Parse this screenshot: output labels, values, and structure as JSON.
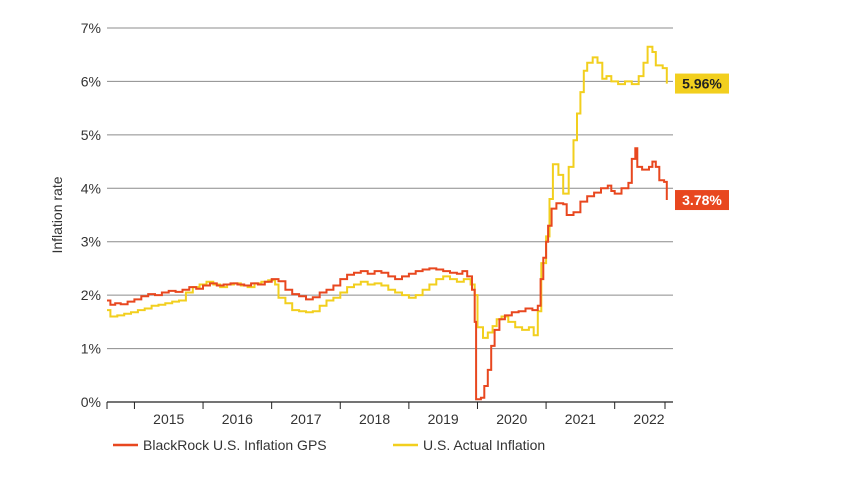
{
  "chart_data": {
    "type": "line",
    "title": "",
    "xlabel": "",
    "ylabel": "Inflation rate",
    "xlim": [
      2014.6,
      2022.85
    ],
    "ylim": [
      0,
      7
    ],
    "yticks": [
      {
        "v": 0,
        "label": "0%"
      },
      {
        "v": 1,
        "label": "1%"
      },
      {
        "v": 2,
        "label": "2%"
      },
      {
        "v": 3,
        "label": "3%"
      },
      {
        "v": 4,
        "label": "4%"
      },
      {
        "v": 5,
        "label": "5%"
      },
      {
        "v": 6,
        "label": "6%"
      },
      {
        "v": 7,
        "label": "7%"
      }
    ],
    "xtick_marks": [
      2015.0,
      2016.0,
      2017.0,
      2018.0,
      2019.0,
      2020.0,
      2021.0,
      2022.0
    ],
    "xcategories": [
      {
        "v": 2015.5,
        "label": "2015"
      },
      {
        "v": 2016.5,
        "label": "2016"
      },
      {
        "v": 2017.5,
        "label": "2017"
      },
      {
        "v": 2018.5,
        "label": "2018"
      },
      {
        "v": 2019.5,
        "label": "2019"
      },
      {
        "v": 2020.5,
        "label": "2020"
      },
      {
        "v": 2021.5,
        "label": "2021"
      },
      {
        "v": 2022.5,
        "label": "2022"
      }
    ],
    "legend": "bottom",
    "grid": "horizontal",
    "series": [
      {
        "name": "BlackRock U.S. Inflation GPS",
        "color": "#e8471f",
        "end_label": "3.78%",
        "points": [
          [
            2014.6,
            1.9
          ],
          [
            2014.65,
            1.82
          ],
          [
            2014.72,
            1.85
          ],
          [
            2014.8,
            1.83
          ],
          [
            2014.9,
            1.88
          ],
          [
            2015.0,
            1.92
          ],
          [
            2015.1,
            1.98
          ],
          [
            2015.2,
            2.02
          ],
          [
            2015.3,
            2.0
          ],
          [
            2015.4,
            2.05
          ],
          [
            2015.5,
            2.08
          ],
          [
            2015.6,
            2.06
          ],
          [
            2015.7,
            2.1
          ],
          [
            2015.8,
            2.15
          ],
          [
            2015.9,
            2.12
          ],
          [
            2016.0,
            2.18
          ],
          [
            2016.1,
            2.22
          ],
          [
            2016.2,
            2.18
          ],
          [
            2016.3,
            2.2
          ],
          [
            2016.4,
            2.22
          ],
          [
            2016.5,
            2.2
          ],
          [
            2016.6,
            2.18
          ],
          [
            2016.7,
            2.22
          ],
          [
            2016.8,
            2.2
          ],
          [
            2016.9,
            2.25
          ],
          [
            2017.0,
            2.3
          ],
          [
            2017.1,
            2.26
          ],
          [
            2017.2,
            2.1
          ],
          [
            2017.3,
            2.02
          ],
          [
            2017.4,
            1.98
          ],
          [
            2017.5,
            1.92
          ],
          [
            2017.6,
            1.96
          ],
          [
            2017.7,
            2.05
          ],
          [
            2017.8,
            2.1
          ],
          [
            2017.9,
            2.18
          ],
          [
            2018.0,
            2.3
          ],
          [
            2018.1,
            2.38
          ],
          [
            2018.2,
            2.42
          ],
          [
            2018.3,
            2.45
          ],
          [
            2018.4,
            2.4
          ],
          [
            2018.5,
            2.45
          ],
          [
            2018.6,
            2.42
          ],
          [
            2018.7,
            2.35
          ],
          [
            2018.8,
            2.3
          ],
          [
            2018.9,
            2.35
          ],
          [
            2019.0,
            2.4
          ],
          [
            2019.1,
            2.45
          ],
          [
            2019.2,
            2.48
          ],
          [
            2019.3,
            2.5
          ],
          [
            2019.4,
            2.48
          ],
          [
            2019.5,
            2.45
          ],
          [
            2019.6,
            2.42
          ],
          [
            2019.7,
            2.4
          ],
          [
            2019.78,
            2.45
          ],
          [
            2019.85,
            2.35
          ],
          [
            2019.92,
            2.1
          ],
          [
            2019.96,
            1.5
          ],
          [
            2019.98,
            0.05
          ],
          [
            2020.05,
            0.08
          ],
          [
            2020.1,
            0.3
          ],
          [
            2020.15,
            0.6
          ],
          [
            2020.2,
            1.05
          ],
          [
            2020.25,
            1.35
          ],
          [
            2020.32,
            1.55
          ],
          [
            2020.4,
            1.62
          ],
          [
            2020.5,
            1.68
          ],
          [
            2020.6,
            1.7
          ],
          [
            2020.7,
            1.75
          ],
          [
            2020.8,
            1.72
          ],
          [
            2020.88,
            1.8
          ],
          [
            2020.92,
            2.3
          ],
          [
            2020.96,
            2.7
          ],
          [
            2021.0,
            3.0
          ],
          [
            2021.03,
            3.3
          ],
          [
            2021.08,
            3.62
          ],
          [
            2021.15,
            3.72
          ],
          [
            2021.25,
            3.7
          ],
          [
            2021.3,
            3.5
          ],
          [
            2021.4,
            3.55
          ],
          [
            2021.5,
            3.75
          ],
          [
            2021.6,
            3.85
          ],
          [
            2021.7,
            3.92
          ],
          [
            2021.8,
            4.0
          ],
          [
            2021.9,
            4.05
          ],
          [
            2021.95,
            3.95
          ],
          [
            2022.0,
            3.9
          ],
          [
            2022.1,
            4.0
          ],
          [
            2022.2,
            4.1
          ],
          [
            2022.25,
            4.55
          ],
          [
            2022.3,
            4.75
          ],
          [
            2022.33,
            4.4
          ],
          [
            2022.4,
            4.35
          ],
          [
            2022.5,
            4.4
          ],
          [
            2022.55,
            4.5
          ],
          [
            2022.6,
            4.4
          ],
          [
            2022.65,
            4.15
          ],
          [
            2022.72,
            4.12
          ],
          [
            2022.76,
            3.78
          ]
        ]
      },
      {
        "name": "U.S. Actual Inflation",
        "color": "#f2cf1e",
        "end_label": "5.96%",
        "points": [
          [
            2014.6,
            1.72
          ],
          [
            2014.65,
            1.6
          ],
          [
            2014.75,
            1.62
          ],
          [
            2014.85,
            1.65
          ],
          [
            2014.95,
            1.68
          ],
          [
            2015.05,
            1.72
          ],
          [
            2015.15,
            1.75
          ],
          [
            2015.25,
            1.8
          ],
          [
            2015.35,
            1.82
          ],
          [
            2015.45,
            1.85
          ],
          [
            2015.55,
            1.88
          ],
          [
            2015.65,
            1.9
          ],
          [
            2015.75,
            2.05
          ],
          [
            2015.85,
            2.15
          ],
          [
            2015.95,
            2.2
          ],
          [
            2016.05,
            2.25
          ],
          [
            2016.15,
            2.2
          ],
          [
            2016.25,
            2.15
          ],
          [
            2016.35,
            2.2
          ],
          [
            2016.45,
            2.22
          ],
          [
            2016.55,
            2.18
          ],
          [
            2016.65,
            2.15
          ],
          [
            2016.75,
            2.22
          ],
          [
            2016.85,
            2.25
          ],
          [
            2016.95,
            2.28
          ],
          [
            2017.05,
            2.2
          ],
          [
            2017.1,
            1.95
          ],
          [
            2017.2,
            1.85
          ],
          [
            2017.3,
            1.72
          ],
          [
            2017.4,
            1.7
          ],
          [
            2017.5,
            1.68
          ],
          [
            2017.6,
            1.7
          ],
          [
            2017.7,
            1.8
          ],
          [
            2017.8,
            1.9
          ],
          [
            2017.9,
            1.95
          ],
          [
            2018.0,
            2.05
          ],
          [
            2018.1,
            2.15
          ],
          [
            2018.2,
            2.2
          ],
          [
            2018.3,
            2.25
          ],
          [
            2018.4,
            2.2
          ],
          [
            2018.5,
            2.22
          ],
          [
            2018.6,
            2.18
          ],
          [
            2018.7,
            2.1
          ],
          [
            2018.8,
            2.05
          ],
          [
            2018.9,
            2.0
          ],
          [
            2019.0,
            1.95
          ],
          [
            2019.1,
            2.0
          ],
          [
            2019.2,
            2.1
          ],
          [
            2019.3,
            2.2
          ],
          [
            2019.4,
            2.3
          ],
          [
            2019.5,
            2.35
          ],
          [
            2019.6,
            2.3
          ],
          [
            2019.7,
            2.25
          ],
          [
            2019.8,
            2.3
          ],
          [
            2019.9,
            2.2
          ],
          [
            2019.96,
            2.0
          ],
          [
            2020.0,
            1.4
          ],
          [
            2020.08,
            1.2
          ],
          [
            2020.15,
            1.3
          ],
          [
            2020.22,
            1.42
          ],
          [
            2020.28,
            1.55
          ],
          [
            2020.35,
            1.6
          ],
          [
            2020.45,
            1.5
          ],
          [
            2020.55,
            1.4
          ],
          [
            2020.65,
            1.35
          ],
          [
            2020.75,
            1.4
          ],
          [
            2020.82,
            1.25
          ],
          [
            2020.88,
            1.7
          ],
          [
            2020.93,
            2.6
          ],
          [
            2021.0,
            3.1
          ],
          [
            2021.05,
            3.8
          ],
          [
            2021.1,
            4.45
          ],
          [
            2021.18,
            4.25
          ],
          [
            2021.25,
            3.9
          ],
          [
            2021.33,
            4.4
          ],
          [
            2021.4,
            4.9
          ],
          [
            2021.45,
            5.4
          ],
          [
            2021.5,
            5.8
          ],
          [
            2021.55,
            6.2
          ],
          [
            2021.6,
            6.35
          ],
          [
            2021.68,
            6.45
          ],
          [
            2021.75,
            6.35
          ],
          [
            2021.82,
            6.05
          ],
          [
            2021.88,
            6.1
          ],
          [
            2021.95,
            6.0
          ],
          [
            2022.05,
            5.95
          ],
          [
            2022.15,
            6.0
          ],
          [
            2022.25,
            5.95
          ],
          [
            2022.35,
            6.1
          ],
          [
            2022.42,
            6.35
          ],
          [
            2022.48,
            6.65
          ],
          [
            2022.55,
            6.55
          ],
          [
            2022.6,
            6.3
          ],
          [
            2022.7,
            6.25
          ],
          [
            2022.76,
            5.96
          ]
        ]
      }
    ]
  }
}
